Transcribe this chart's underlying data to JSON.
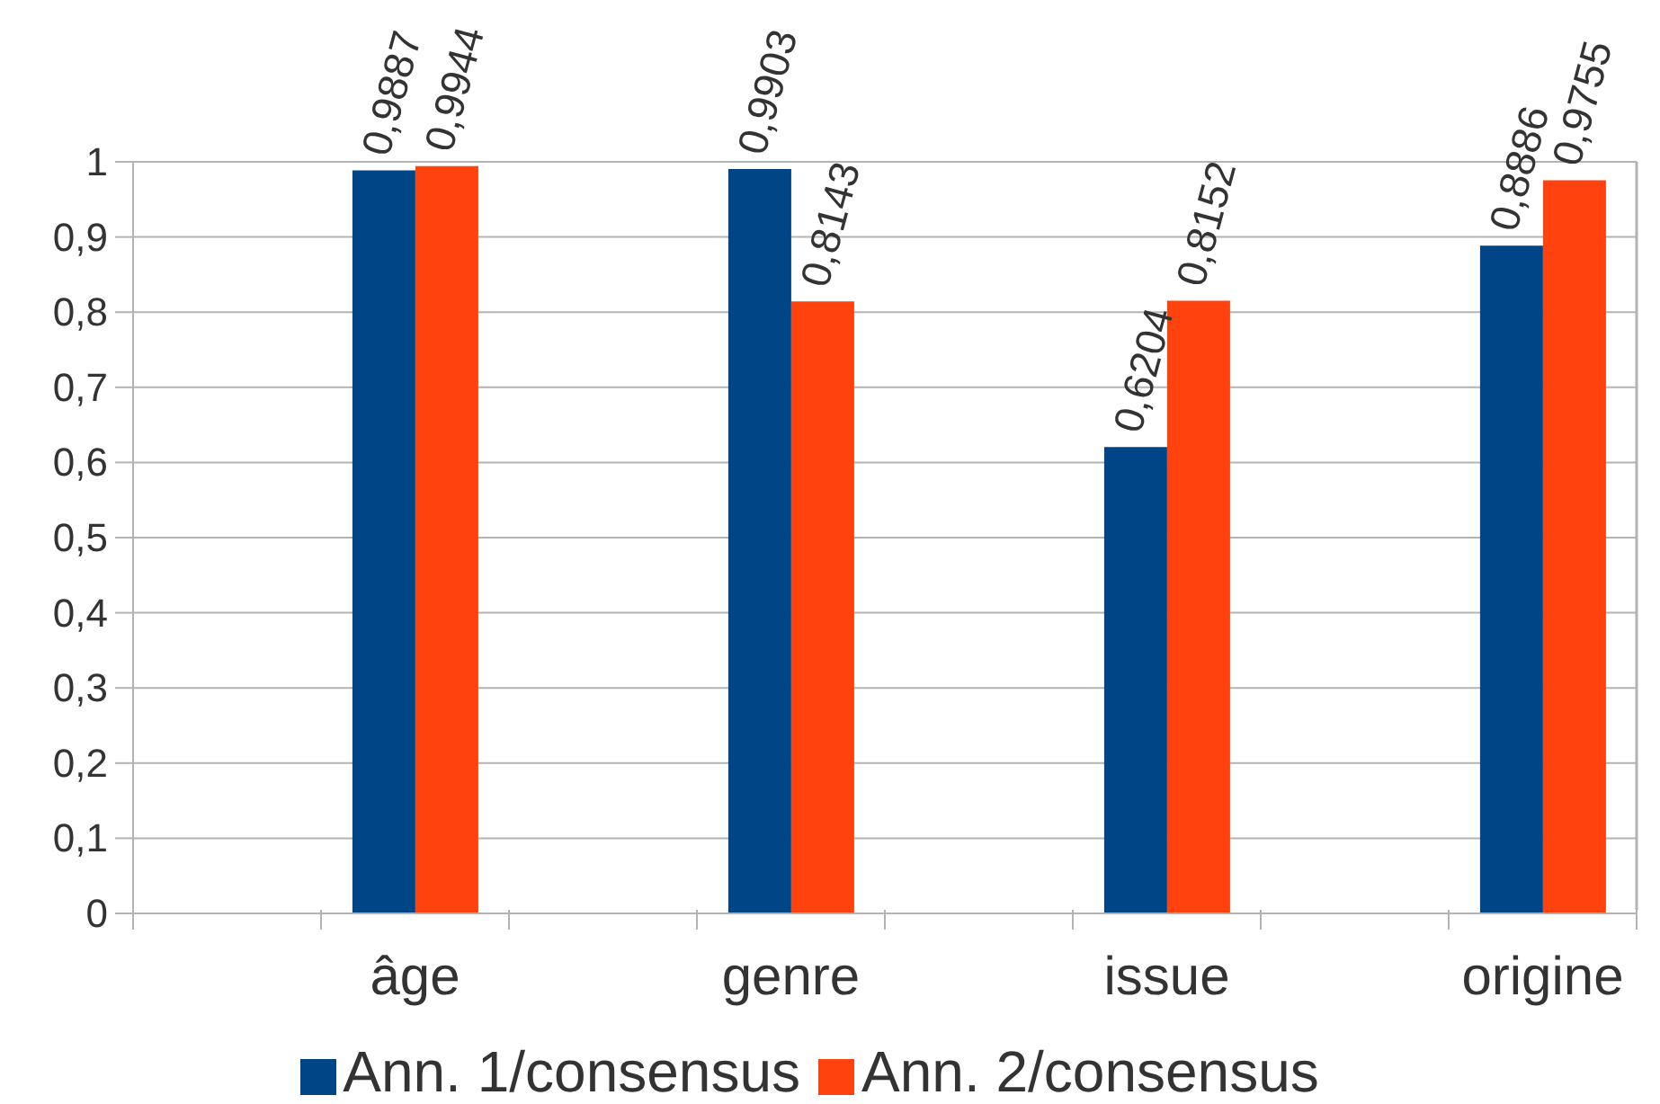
{
  "chart_data": {
    "type": "bar",
    "categories": [
      null,
      "âge",
      null,
      "genre",
      null,
      "issue",
      null,
      "origine"
    ],
    "series": [
      {
        "name": "Ann. 1/consensus",
        "color": "#004586",
        "values": [
          null,
          0.9887,
          null,
          0.9903,
          null,
          0.6204,
          null,
          0.8886
        ],
        "value_labels": [
          null,
          "0,9887",
          null,
          "0,9903",
          null,
          "0,6204",
          null,
          "0,8886"
        ]
      },
      {
        "name": "Ann. 2/consensus",
        "color": "#ff420e",
        "values": [
          null,
          0.9944,
          null,
          0.8143,
          null,
          0.8152,
          null,
          0.9755
        ],
        "value_labels": [
          null,
          "0,9944",
          null,
          "0,8143",
          null,
          "0,8152",
          null,
          "0,9755"
        ]
      }
    ],
    "ylim": [
      0,
      1
    ],
    "yticks": [
      0,
      {
        "value": 0.1,
        "label": "0,1"
      },
      {
        "value": 0.2,
        "label": "0,2"
      },
      {
        "value": 0.3,
        "label": "0,3"
      },
      {
        "value": 0.4,
        "label": "0,4"
      },
      {
        "value": 0.5,
        "label": "0,5"
      },
      {
        "value": 0.6,
        "label": "0,6"
      },
      {
        "value": 0.7,
        "label": "0,7"
      },
      {
        "value": 0.8,
        "label": "0,8"
      },
      {
        "value": 0.9,
        "label": "0,9"
      },
      1
    ],
    "grid": "y",
    "legend": "bottom"
  }
}
